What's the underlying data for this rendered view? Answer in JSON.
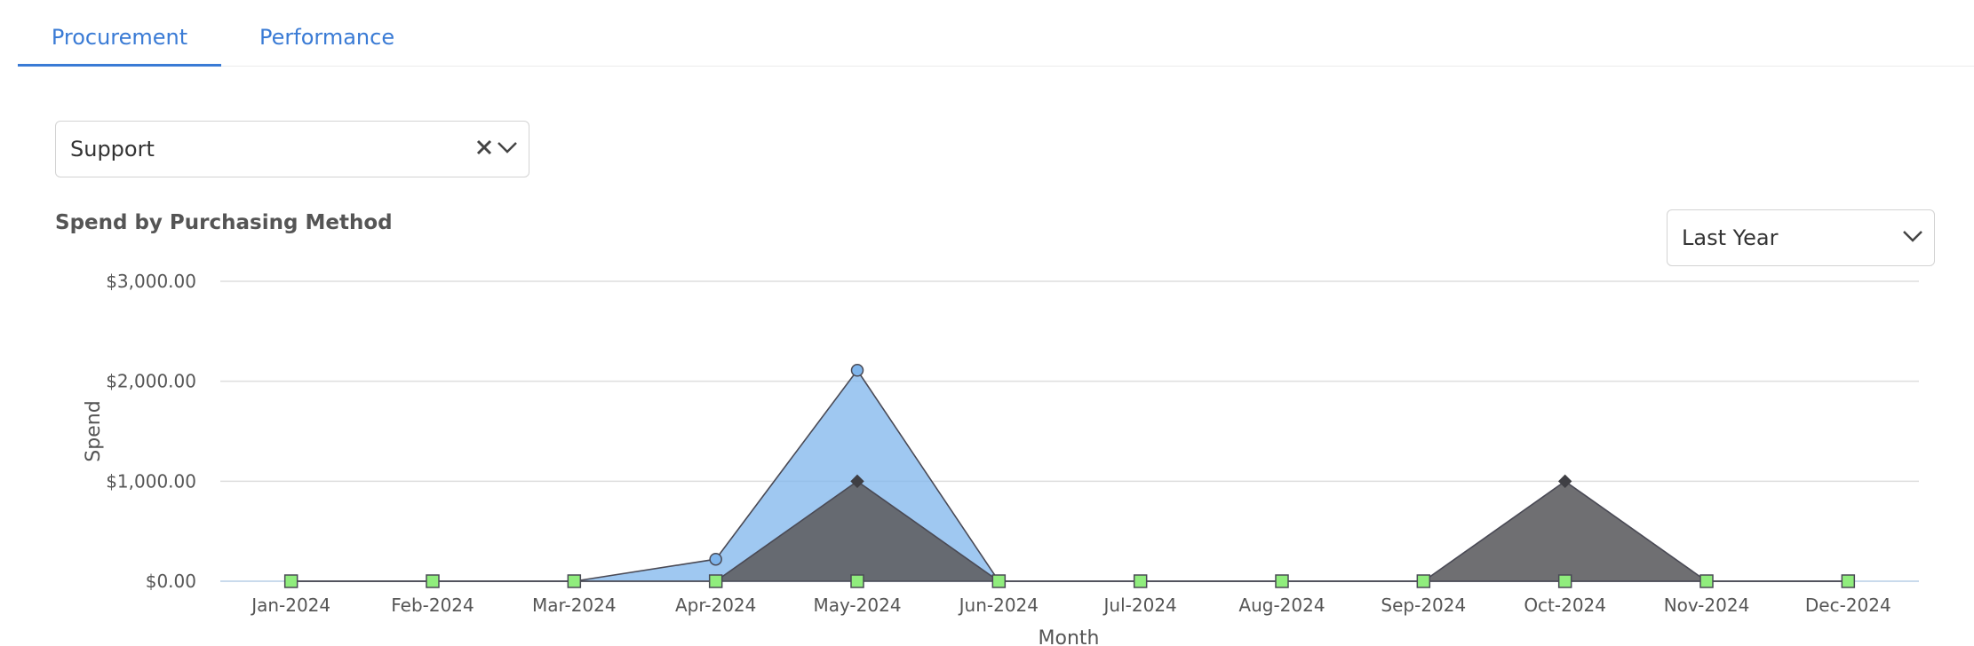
{
  "tabs": [
    {
      "label": "Procurement",
      "active": true
    },
    {
      "label": "Performance",
      "active": false
    }
  ],
  "category_filter": {
    "value": "Support"
  },
  "period_filter": {
    "value": "Last Year"
  },
  "chart_data": {
    "type": "area",
    "title": "Spend by Purchasing Method",
    "xlabel": "Month",
    "ylabel": "Spend",
    "categories": [
      "Jan-2024",
      "Feb-2024",
      "Mar-2024",
      "Apr-2024",
      "May-2024",
      "Jun-2024",
      "Jul-2024",
      "Aug-2024",
      "Sep-2024",
      "Oct-2024",
      "Nov-2024",
      "Dec-2024"
    ],
    "y_ticks": [
      "$0.00",
      "$1,000.00",
      "$2,000.00",
      "$3,000.00"
    ],
    "ylim": [
      0,
      3000
    ],
    "grid": true,
    "series": [
      {
        "values": [
          0,
          0,
          0,
          220,
          2110,
          0,
          0,
          0,
          0,
          0,
          0,
          0
        ],
        "color": "#7fb5ec",
        "marker": "circle"
      },
      {
        "values": [
          0,
          0,
          0,
          0,
          1000,
          0,
          0,
          0,
          0,
          1000,
          0,
          0
        ],
        "color": "#5f5f63",
        "marker": "diamond"
      },
      {
        "values": [
          0,
          0,
          0,
          0,
          0,
          0,
          0,
          0,
          0,
          0,
          0,
          0
        ],
        "color": "#90ed7d",
        "marker": "square"
      }
    ]
  }
}
